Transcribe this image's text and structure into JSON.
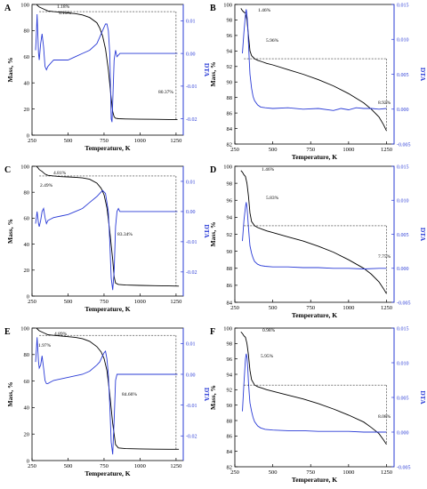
{
  "colors": {
    "mass": "#000000",
    "dta": "#2a3bd6",
    "axis": "#000000",
    "dta_axis": "#2a3bd6"
  },
  "chart_data": [
    {
      "panel": "A",
      "type": "line",
      "xlabel": "Temperature, K",
      "ylabel": "Mass, %",
      "y2label": "DTA",
      "xlim": [
        250,
        1300
      ],
      "xticks": [
        250,
        500,
        750,
        1000,
        1250
      ],
      "ylim": [
        0,
        100
      ],
      "yticks": [
        0,
        20,
        40,
        60,
        80,
        100
      ],
      "y2lim": [
        -0.025,
        0.015
      ],
      "y2ticks": [
        -0.02,
        -0.01,
        0.0,
        0.01
      ],
      "series": [
        {
          "axis": "y",
          "x": [
            280,
            300,
            330,
            360,
            400,
            450,
            500,
            550,
            600,
            650,
            700,
            720,
            740,
            760,
            780,
            800,
            810,
            820,
            830,
            850,
            900,
            1000,
            1100,
            1200,
            1260
          ],
          "values": [
            100,
            98,
            96.5,
            95,
            94.5,
            94,
            93.5,
            93,
            92,
            90,
            86,
            82,
            76,
            66,
            50,
            28,
            18,
            14,
            13,
            12.6,
            12.4,
            12.2,
            12.1,
            12,
            12
          ]
        },
        {
          "axis": "y2",
          "x": [
            275,
            280,
            285,
            290,
            295,
            300,
            310,
            320,
            330,
            340,
            350,
            360,
            380,
            400,
            450,
            500,
            550,
            600,
            650,
            700,
            720,
            740,
            760,
            770,
            780,
            790,
            795,
            800,
            805,
            810,
            820,
            830,
            840,
            860,
            900,
            950,
            1000,
            1050,
            1100,
            1150,
            1200,
            1260
          ],
          "values": [
            0.001,
            0.006,
            0.012,
            0.006,
            0.0,
            -0.002,
            0.003,
            0.006,
            0.002,
            -0.004,
            -0.005,
            -0.004,
            -0.003,
            -0.002,
            -0.002,
            -0.002,
            -0.001,
            0.0,
            0.001,
            0.003,
            0.005,
            0.007,
            0.009,
            0.009,
            0.007,
            0.0,
            -0.01,
            -0.02,
            -0.021,
            -0.015,
            -0.002,
            0.001,
            -0.001,
            0.0,
            0.0,
            0.0,
            0.0,
            0.0,
            0.0,
            0.0,
            0.0,
            0.0
          ]
        }
      ],
      "annotations": [
        "1.18%",
        "4.13%",
        "80.37%"
      ]
    },
    {
      "panel": "B",
      "type": "line",
      "xlabel": "Temperature, K",
      "ylabel": "Mass, %",
      "y2label": "DTA",
      "xlim": [
        250,
        1300
      ],
      "xticks": [
        250,
        500,
        750,
        1000,
        1250
      ],
      "ylim": [
        82,
        100
      ],
      "yticks": [
        82,
        84,
        86,
        88,
        90,
        92,
        94,
        96,
        98,
        100
      ],
      "y2lim": [
        -0.005,
        0.015
      ],
      "y2ticks": [
        -0.005,
        0.0,
        0.005,
        0.01,
        0.015
      ],
      "series": [
        {
          "axis": "y",
          "x": [
            290,
            300,
            310,
            320,
            330,
            340,
            350,
            360,
            380,
            400,
            430,
            460,
            500,
            600,
            700,
            800,
            900,
            1000,
            1100,
            1150,
            1200,
            1230,
            1250
          ],
          "values": [
            99.5,
            99.2,
            99,
            98.9,
            98,
            96,
            94,
            93.4,
            93,
            92.8,
            92.6,
            92.4,
            92.2,
            91.6,
            91,
            90.3,
            89.5,
            88.5,
            87.3,
            86.5,
            85.5,
            84.5,
            83.7
          ]
        },
        {
          "axis": "y2",
          "x": [
            300,
            310,
            320,
            325,
            330,
            335,
            340,
            345,
            350,
            360,
            370,
            380,
            400,
            420,
            450,
            500,
            600,
            700,
            800,
            900,
            950,
            1000,
            1050,
            1100,
            1150,
            1200,
            1250
          ],
          "values": [
            0.008,
            0.011,
            0.0135,
            0.0143,
            0.0135,
            0.012,
            0.0095,
            0.007,
            0.005,
            0.003,
            0.0018,
            0.0012,
            0.0006,
            0.0003,
            0.0002,
            0.0001,
            0.0002,
            0.0,
            0.0001,
            -0.0002,
            0.0001,
            -0.0001,
            0.0002,
            0.0001,
            0.0001,
            0.0,
            0.0001
          ]
        }
      ],
      "annotations": [
        "1.46%",
        "5.96%",
        "8.92%"
      ]
    },
    {
      "panel": "C",
      "type": "line",
      "xlabel": "Temperature, K",
      "ylabel": "Mass, %",
      "y2label": "DTA",
      "xlim": [
        250,
        1300
      ],
      "xticks": [
        250,
        500,
        750,
        1000,
        1250
      ],
      "ylim": [
        0,
        100
      ],
      "yticks": [
        0,
        20,
        40,
        60,
        80,
        100
      ],
      "y2lim": [
        -0.028,
        0.015
      ],
      "y2ticks": [
        -0.02,
        -0.01,
        0.0,
        0.01
      ],
      "series": [
        {
          "axis": "y",
          "x": [
            280,
            290,
            300,
            320,
            340,
            360,
            400,
            450,
            500,
            550,
            600,
            650,
            700,
            730,
            750,
            770,
            790,
            810,
            820,
            830,
            850,
            900,
            1000,
            1100,
            1200,
            1270
          ],
          "values": [
            100,
            99,
            97.5,
            96,
            94,
            93,
            92.5,
            92,
            91.8,
            91.5,
            91,
            90,
            87,
            83,
            78,
            68,
            50,
            28,
            15,
            10,
            9,
            8.5,
            8.2,
            8,
            7.8,
            7.7
          ]
        },
        {
          "axis": "y2",
          "x": [
            275,
            280,
            285,
            290,
            295,
            300,
            310,
            320,
            330,
            340,
            350,
            360,
            380,
            400,
            450,
            500,
            550,
            600,
            650,
            700,
            720,
            740,
            760,
            780,
            790,
            800,
            810,
            820,
            830,
            840,
            850,
            860,
            900,
            1000,
            1100,
            1200,
            1260
          ],
          "values": [
            -0.004,
            -0.002,
            0.0,
            -0.002,
            -0.004,
            -0.005,
            -0.003,
            0.0,
            0.001,
            -0.002,
            -0.004,
            -0.003,
            -0.0025,
            -0.002,
            -0.0015,
            -0.001,
            0.0,
            0.001,
            0.003,
            0.005,
            0.006,
            0.007,
            0.006,
            0.0,
            -0.01,
            -0.022,
            -0.026,
            -0.02,
            -0.005,
            0.0,
            0.001,
            0.0,
            0.0,
            0.0,
            0.0,
            0.0,
            0.0
          ]
        }
      ],
      "annotations": [
        "2.49%",
        "4.81%",
        "83.34%"
      ]
    },
    {
      "panel": "D",
      "type": "line",
      "xlabel": "Temperature, K",
      "ylabel": "Mass, %",
      "y2label": "DTA",
      "xlim": [
        250,
        1300
      ],
      "xticks": [
        250,
        500,
        750,
        1000,
        1250
      ],
      "ylim": [
        84,
        100
      ],
      "yticks": [
        84,
        86,
        88,
        90,
        92,
        94,
        96,
        98,
        100
      ],
      "y2lim": [
        -0.005,
        0.015
      ],
      "y2ticks": [
        -0.005,
        0.0,
        0.005,
        0.01,
        0.015
      ],
      "series": [
        {
          "axis": "y",
          "x": [
            290,
            300,
            310,
            320,
            330,
            340,
            350,
            360,
            380,
            400,
            430,
            460,
            500,
            600,
            700,
            800,
            900,
            1000,
            1100,
            1150,
            1200,
            1230,
            1250
          ],
          "values": [
            99.5,
            99.3,
            99,
            98.8,
            98,
            96.5,
            94.5,
            93.5,
            93,
            92.8,
            92.6,
            92.4,
            92.2,
            91.7,
            91.2,
            90.6,
            89.9,
            89,
            88,
            87.3,
            86.4,
            85.6,
            85
          ]
        },
        {
          "axis": "y2",
          "x": [
            300,
            310,
            320,
            325,
            330,
            335,
            340,
            345,
            350,
            360,
            370,
            380,
            400,
            420,
            450,
            500,
            600,
            700,
            800,
            900,
            1000,
            1100,
            1200,
            1250
          ],
          "values": [
            0.004,
            0.007,
            0.009,
            0.0097,
            0.009,
            0.0075,
            0.006,
            0.0045,
            0.0033,
            0.0022,
            0.0015,
            0.001,
            0.0006,
            0.0004,
            0.0003,
            0.0002,
            0.0002,
            0.0001,
            0.0001,
            0.0,
            0.0,
            -0.0001,
            0.0,
            0.0
          ]
        }
      ],
      "annotations": [
        "1.46%",
        "5.83%",
        "7.75%"
      ]
    },
    {
      "panel": "E",
      "type": "line",
      "xlabel": "Temperature, K",
      "ylabel": "Mass, %",
      "y2label": "DTA",
      "xlim": [
        250,
        1300
      ],
      "xticks": [
        250,
        500,
        750,
        1000,
        1250
      ],
      "ylim": [
        0,
        100
      ],
      "yticks": [
        0,
        20,
        40,
        60,
        80,
        100
      ],
      "y2lim": [
        -0.028,
        0.015
      ],
      "y2ticks": [
        -0.02,
        -0.01,
        0.0,
        0.01
      ],
      "series": [
        {
          "axis": "y",
          "x": [
            280,
            290,
            300,
            320,
            340,
            360,
            400,
            450,
            500,
            550,
            600,
            650,
            700,
            730,
            750,
            770,
            790,
            810,
            830,
            850,
            900,
            1000,
            1100,
            1200,
            1270
          ],
          "values": [
            100,
            99,
            98,
            97,
            96,
            95,
            94.5,
            94,
            93.5,
            93,
            92,
            90,
            86,
            82,
            77,
            68,
            50,
            28,
            12,
            9.5,
            9,
            8.8,
            8.6,
            8.5,
            8.5
          ]
        },
        {
          "axis": "y2",
          "x": [
            275,
            280,
            285,
            290,
            295,
            300,
            310,
            320,
            330,
            340,
            350,
            360,
            380,
            400,
            450,
            500,
            550,
            600,
            650,
            700,
            720,
            740,
            750,
            760,
            770,
            780,
            790,
            800,
            810,
            820,
            830,
            840,
            850,
            860,
            900,
            1000,
            1100,
            1200,
            1260
          ],
          "values": [
            0.004,
            0.008,
            0.012,
            0.008,
            0.004,
            0.002,
            0.003,
            0.006,
            0.002,
            -0.002,
            -0.003,
            -0.003,
            -0.0025,
            -0.002,
            -0.0015,
            -0.001,
            -0.0005,
            0.0,
            0.001,
            0.003,
            0.004,
            0.006,
            0.007,
            0.0075,
            0.005,
            0.0,
            -0.01,
            -0.022,
            -0.026,
            -0.015,
            -0.002,
            0.0,
            0.0,
            0.0,
            0.0,
            0.0,
            0.0,
            0.0,
            0.0
          ]
        }
      ],
      "annotations": [
        "1.97%",
        "4.89%",
        "84.66%"
      ]
    },
    {
      "panel": "F",
      "type": "line",
      "xlabel": "Temperature, K",
      "ylabel": "Mass, %",
      "y2label": "DTA",
      "xlim": [
        250,
        1300
      ],
      "xticks": [
        250,
        500,
        750,
        1000,
        1250
      ],
      "ylim": [
        82,
        100
      ],
      "yticks": [
        82,
        84,
        86,
        88,
        90,
        92,
        94,
        96,
        98,
        100
      ],
      "y2lim": [
        -0.005,
        0.015
      ],
      "y2ticks": [
        -0.005,
        0.0,
        0.005,
        0.01,
        0.015
      ],
      "series": [
        {
          "axis": "y",
          "x": [
            290,
            300,
            310,
            320,
            330,
            340,
            350,
            360,
            380,
            400,
            430,
            460,
            500,
            600,
            700,
            800,
            900,
            1000,
            1100,
            1150,
            1200,
            1230,
            1250
          ],
          "values": [
            99.5,
            99.3,
            99,
            98.8,
            98,
            96.5,
            94.5,
            93.3,
            92.6,
            92.4,
            92.2,
            92,
            91.8,
            91.3,
            90.8,
            90.2,
            89.5,
            88.7,
            87.8,
            87.1,
            86.3,
            85.5,
            84.9
          ]
        },
        {
          "axis": "y2",
          "x": [
            300,
            310,
            320,
            325,
            330,
            335,
            340,
            345,
            350,
            360,
            370,
            380,
            400,
            420,
            450,
            500,
            600,
            700,
            800,
            900,
            1000,
            1100,
            1200,
            1250
          ],
          "values": [
            0.003,
            0.007,
            0.0105,
            0.0113,
            0.0108,
            0.0092,
            0.0072,
            0.0055,
            0.0042,
            0.003,
            0.0021,
            0.0015,
            0.0009,
            0.0006,
            0.0004,
            0.0003,
            0.0002,
            0.0002,
            0.0001,
            0.0001,
            0.0001,
            0.0,
            0.0,
            0.0
          ]
        }
      ],
      "annotations": [
        "0.98%",
        "5.95%",
        "8.08%"
      ]
    }
  ]
}
